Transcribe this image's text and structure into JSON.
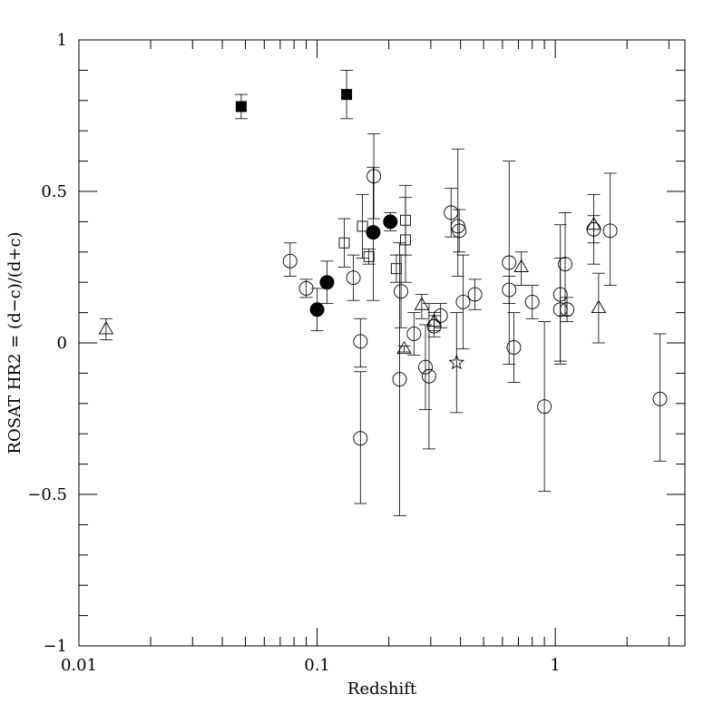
{
  "chart_data": {
    "type": "scatter",
    "xlabel": "Redshift",
    "ylabel": "ROSAT HR2 = (d−c)/(d+c)",
    "xscale": "log",
    "xlim": [
      0.01,
      3.5
    ],
    "ylim": [
      -1,
      1
    ],
    "xticks": [
      {
        "value": 0.01,
        "label": "0.01"
      },
      {
        "value": 0.1,
        "label": "0.1"
      },
      {
        "value": 1,
        "label": "1"
      }
    ],
    "yticks": [
      {
        "value": 1,
        "label": "1"
      },
      {
        "value": 0.5,
        "label": "0.5"
      },
      {
        "value": 0,
        "label": "0"
      },
      {
        "value": -0.5,
        "label": "−0.5"
      },
      {
        "value": -1,
        "label": "−1"
      }
    ],
    "grid": false,
    "legend": "none",
    "series": [
      {
        "marker": "filled-square",
        "points": [
          {
            "x": 0.048,
            "y": 0.78,
            "lo": 0.74,
            "hi": 0.82
          },
          {
            "x": 0.133,
            "y": 0.82,
            "lo": 0.74,
            "hi": 0.9
          }
        ]
      },
      {
        "marker": "filled-circle",
        "points": [
          {
            "x": 0.1,
            "y": 0.11,
            "lo": 0.04,
            "hi": 0.18
          },
          {
            "x": 0.11,
            "y": 0.2,
            "lo": 0.13,
            "hi": 0.27
          },
          {
            "x": 0.172,
            "y": 0.365,
            "lo": 0.14,
            "hi": 0.58
          },
          {
            "x": 0.203,
            "y": 0.4,
            "lo": 0.37,
            "hi": 0.43
          }
        ]
      },
      {
        "marker": "open-square",
        "points": [
          {
            "x": 0.13,
            "y": 0.33,
            "lo": 0.25,
            "hi": 0.41
          },
          {
            "x": 0.155,
            "y": 0.385,
            "lo": 0.28,
            "hi": 0.49
          },
          {
            "x": 0.165,
            "y": 0.285,
            "lo": 0.26,
            "hi": 0.31
          },
          {
            "x": 0.215,
            "y": 0.245,
            "lo": 0.2,
            "hi": 0.29
          },
          {
            "x": 0.235,
            "y": 0.405,
            "lo": 0.29,
            "hi": 0.52
          },
          {
            "x": 0.235,
            "y": 0.34,
            "lo": 0.2,
            "hi": 0.48
          }
        ]
      },
      {
        "marker": "open-circle",
        "points": [
          {
            "x": 0.077,
            "y": 0.27,
            "lo": 0.22,
            "hi": 0.33
          },
          {
            "x": 0.09,
            "y": 0.18,
            "lo": 0.15,
            "hi": 0.21
          },
          {
            "x": 0.142,
            "y": 0.215,
            "lo": 0.14,
            "hi": 0.29
          },
          {
            "x": 0.152,
            "y": 0.005,
            "lo": -0.08,
            "hi": 0.08
          },
          {
            "x": 0.152,
            "y": -0.315,
            "lo": -0.53,
            "hi": -0.095
          },
          {
            "x": 0.173,
            "y": 0.55,
            "lo": 0.41,
            "hi": 0.69
          },
          {
            "x": 0.225,
            "y": 0.17,
            "lo": 0.05,
            "hi": 0.29
          },
          {
            "x": 0.222,
            "y": -0.12,
            "lo": -0.57,
            "hi": 0.33
          },
          {
            "x": 0.255,
            "y": 0.03,
            "lo": -0.04,
            "hi": 0.1
          },
          {
            "x": 0.285,
            "y": -0.08,
            "lo": -0.22,
            "hi": 0.06
          },
          {
            "x": 0.295,
            "y": -0.11,
            "lo": -0.35,
            "hi": 0.13
          },
          {
            "x": 0.31,
            "y": 0.055,
            "lo": 0.02,
            "hi": 0.09
          },
          {
            "x": 0.33,
            "y": 0.09,
            "lo": 0.05,
            "hi": 0.13
          },
          {
            "x": 0.365,
            "y": 0.43,
            "lo": 0.35,
            "hi": 0.51
          },
          {
            "x": 0.39,
            "y": 0.385,
            "lo": 0.22,
            "hi": 0.64
          },
          {
            "x": 0.395,
            "y": 0.37,
            "lo": 0.3,
            "hi": 0.44
          },
          {
            "x": 0.41,
            "y": 0.135,
            "lo": -0.02,
            "hi": 0.29
          },
          {
            "x": 0.46,
            "y": 0.16,
            "lo": 0.11,
            "hi": 0.21
          },
          {
            "x": 0.64,
            "y": 0.265,
            "lo": -0.07,
            "hi": 0.6
          },
          {
            "x": 0.64,
            "y": 0.175,
            "lo": 0.13,
            "hi": 0.22
          },
          {
            "x": 0.67,
            "y": -0.015,
            "lo": -0.13,
            "hi": 0.1
          },
          {
            "x": 0.8,
            "y": 0.135,
            "lo": 0.08,
            "hi": 0.19
          },
          {
            "x": 0.9,
            "y": -0.21,
            "lo": -0.49,
            "hi": 0.07
          },
          {
            "x": 1.05,
            "y": 0.16,
            "lo": -0.07,
            "hi": 0.39
          },
          {
            "x": 1.05,
            "y": 0.11,
            "lo": -0.06,
            "hi": 0.28
          },
          {
            "x": 1.1,
            "y": 0.26,
            "lo": 0.09,
            "hi": 0.43
          },
          {
            "x": 1.12,
            "y": 0.11,
            "lo": 0.07,
            "hi": 0.15
          },
          {
            "x": 1.45,
            "y": 0.375,
            "lo": 0.33,
            "hi": 0.42
          },
          {
            "x": 1.7,
            "y": 0.37,
            "lo": 0.19,
            "hi": 0.56
          },
          {
            "x": 2.75,
            "y": -0.185,
            "lo": -0.39,
            "hi": 0.03
          }
        ]
      },
      {
        "marker": "open-triangle",
        "points": [
          {
            "x": 0.013,
            "y": 0.045,
            "lo": 0.01,
            "hi": 0.08
          },
          {
            "x": 0.232,
            "y": -0.02,
            "lo": -0.03,
            "hi": -0.01
          },
          {
            "x": 0.275,
            "y": 0.125,
            "lo": 0.08,
            "hi": 0.16
          },
          {
            "x": 0.31,
            "y": 0.07,
            "lo": 0.04,
            "hi": 0.1
          },
          {
            "x": 0.72,
            "y": 0.25,
            "lo": 0.19,
            "hi": 0.3
          },
          {
            "x": 1.45,
            "y": 0.39,
            "lo": 0.26,
            "hi": 0.49
          },
          {
            "x": 1.52,
            "y": 0.115,
            "lo": 0.0,
            "hi": 0.23
          }
        ]
      },
      {
        "marker": "open-star",
        "points": [
          {
            "x": 0.385,
            "y": -0.065,
            "lo": -0.23,
            "hi": 0.1
          }
        ]
      }
    ]
  }
}
